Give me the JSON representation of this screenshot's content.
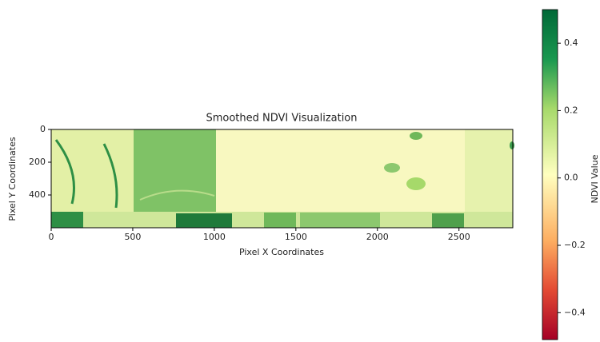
{
  "chart_data": {
    "type": "heatmap",
    "title": "Smoothed NDVI Visualization",
    "xlabel": "Pixel X Coordinates",
    "ylabel": "Pixel Y Coordinates",
    "xlim": [
      0,
      2830
    ],
    "xticks": [
      0,
      500,
      1000,
      1500,
      2000,
      2500
    ],
    "ylim": [
      600,
      0
    ],
    "yticks": [
      0,
      200,
      400
    ],
    "colormap": "RdYlGn",
    "colorbar": {
      "label": "NDVI Value",
      "lim": [
        -0.48,
        0.5
      ],
      "ticks": [
        {
          "value": -0.4,
          "label": "−0.4"
        },
        {
          "value": -0.2,
          "label": "−0.2"
        },
        {
          "value": 0,
          "label": "0.0"
        },
        0.2,
        0.4
      ]
    }
  }
}
